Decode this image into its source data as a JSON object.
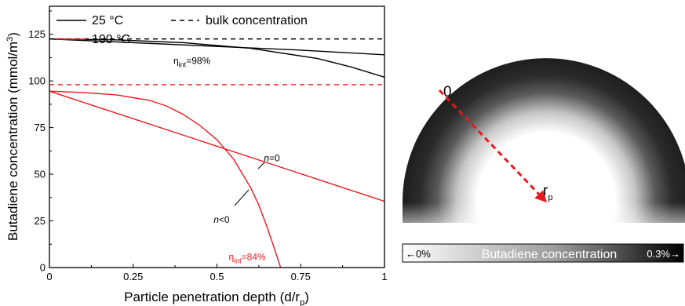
{
  "chart_data": [
    {
      "type": "line",
      "xlabel": "Particle penetration depth (d/r",
      "xlabel_sub": "p",
      "xlabel_end": ")",
      "ylabel": "Butadiene concentration (mmol/m",
      "ylabel_sup": "3",
      "ylabel_end": ")",
      "xlim": [
        0,
        1
      ],
      "ylim": [
        0,
        140
      ],
      "xticks": [
        {
          "value": 0,
          "label": "0"
        },
        {
          "value": 0.25,
          "label": "0.25"
        },
        {
          "value": 0.5,
          "label": "0.5"
        },
        {
          "value": 0.75,
          "label": "0.75"
        },
        {
          "value": 1,
          "label": "1"
        }
      ],
      "yticks": [
        {
          "value": 0,
          "label": "0"
        },
        {
          "value": 25,
          "label": "25"
        },
        {
          "value": 50,
          "label": "50"
        },
        {
          "value": 75,
          "label": "75"
        },
        {
          "value": 100,
          "label": "100"
        },
        {
          "value": 125,
          "label": "125"
        }
      ],
      "grid": false,
      "legend": {
        "placement": "top-left",
        "entries": [
          {
            "label": "25 °C",
            "color": "#000000",
            "dash": "solid"
          },
          {
            "label": "bulk concentration",
            "color": "#000000",
            "dash": "dashed"
          },
          {
            "label": "100 °C",
            "color": "#e8191e",
            "dash": "solid"
          }
        ]
      },
      "series": [
        {
          "key": "bulk_25",
          "color": "#000000",
          "dash": "dashed",
          "x": [
            0,
            1
          ],
          "y": [
            122.5,
            122.5
          ]
        },
        {
          "key": "n0_25",
          "color": "#000000",
          "dash": "solid",
          "x": [
            0,
            0.25,
            0.5,
            0.75,
            1
          ],
          "y": [
            122.5,
            120.5,
            118.5,
            116.5,
            114
          ]
        },
        {
          "key": "nlt0_25",
          "color": "#000000",
          "dash": "solid",
          "x": [
            0,
            0.2,
            0.4,
            0.6,
            0.8,
            0.9,
            1
          ],
          "y": [
            122.5,
            122,
            120.5,
            117.5,
            112,
            107.5,
            102
          ]
        },
        {
          "key": "bulk_100",
          "color": "#e8191e",
          "dash": "dashed",
          "x": [
            0,
            1
          ],
          "y": [
            98,
            98
          ]
        },
        {
          "key": "n0_100",
          "color": "#e8191e",
          "dash": "solid",
          "x": [
            0,
            1
          ],
          "y": [
            94.5,
            35.5
          ]
        },
        {
          "key": "nlt0_100",
          "color": "#e8191e",
          "dash": "solid",
          "x": [
            0,
            0.1,
            0.2,
            0.3,
            0.35,
            0.4,
            0.45,
            0.5,
            0.55,
            0.6,
            0.625,
            0.65,
            0.67,
            0.69
          ],
          "y": [
            94.5,
            93.8,
            92.5,
            89.5,
            86.5,
            82,
            76,
            68.5,
            58,
            43,
            33.5,
            21.5,
            11,
            0
          ]
        }
      ],
      "annotations": [
        {
          "prefix": "η",
          "sub": "int",
          "text": "=98%",
          "color": "#000000",
          "x": 0.37,
          "y": 109
        },
        {
          "prefix": "η",
          "sub": "int",
          "text": "=84%",
          "color": "#e8191e",
          "x": 0.535,
          "y": 4
        },
        {
          "prefix": "",
          "italic": "n",
          "text": "=0",
          "color": "#000000",
          "x": 0.64,
          "y": 57
        },
        {
          "prefix": "",
          "italic": "n",
          "text": "<0",
          "color": "#000000",
          "x": 0.49,
          "y": 24
        }
      ]
    }
  ],
  "diagram": {
    "start_label": "0",
    "end_label": "r",
    "end_label_sub": "p",
    "arrow_color": "#e8191e"
  },
  "colorbar": {
    "left_label": "←0%",
    "title": "Butadiene concentration",
    "right_label": "0.3%→"
  }
}
